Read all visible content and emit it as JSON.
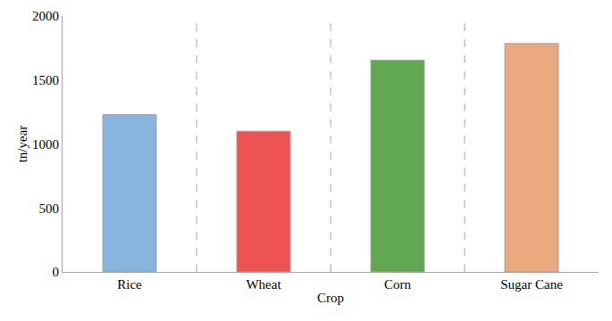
{
  "chart_data": {
    "type": "bar",
    "xlabel": "Crop",
    "ylabel": "tn/year",
    "categories": [
      "Rice",
      "Wheat",
      "Corn",
      "Sugar Cane"
    ],
    "values": [
      1230,
      1100,
      1655,
      1785
    ],
    "colors": [
      "#87b5dd",
      "#ee5353",
      "#62a853",
      "#eba87c"
    ],
    "ylim": [
      0,
      2000
    ],
    "yticks": [
      0,
      500,
      1000,
      1500,
      2000
    ],
    "grid": false
  }
}
